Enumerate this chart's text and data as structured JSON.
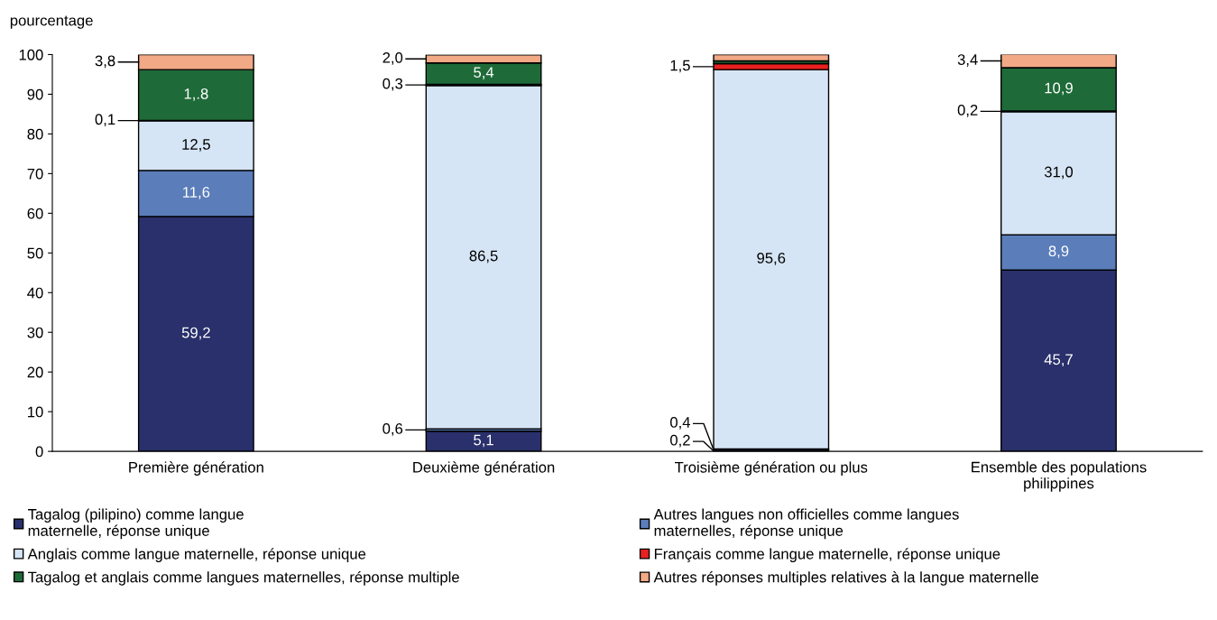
{
  "chart_data": {
    "type": "bar",
    "stacked": true,
    "ylabel": "pourcentage",
    "categories": [
      "Première génération",
      "Deuxième génération",
      "Troisième génération ou plus",
      "Ensemble des populations\nphilippines"
    ],
    "series": [
      {
        "name": "Tagalog (pilipino) comme langue\nmaternelle, réponse unique",
        "color": "#29306b",
        "values": [
          59.2,
          5.1,
          0.2,
          45.7
        ],
        "value_labels": [
          "59,2",
          "5,1",
          "0,2",
          "45,7"
        ]
      },
      {
        "name": "Autres langues non officielles comme langues\nmaternelles, réponse unique",
        "color": "#5b7dba",
        "values": [
          11.6,
          0.6,
          0.4,
          8.9
        ],
        "value_labels": [
          "11,6",
          "0,6",
          "0,4",
          "8,9"
        ]
      },
      {
        "name": "Anglais comme langue maternelle, réponse unique",
        "color": "#d6e5f5",
        "values": [
          12.5,
          86.5,
          95.6,
          31.0
        ],
        "value_labels": [
          "12,5",
          "86,5",
          "95,6",
          "31,0"
        ]
      },
      {
        "name": "Français comme langue maternelle, réponse unique",
        "color": "#e8201f",
        "values": [
          0.1,
          0.3,
          1.5,
          0.2
        ],
        "value_labels": [
          "0,1",
          "0,3",
          "1,5",
          "0,2"
        ]
      },
      {
        "name": "Tagalog et anglais comme langues maternelles, réponse multiple",
        "color": "#1e6b39",
        "values": [
          12.8,
          5.4,
          0.7,
          10.9
        ],
        "value_labels": [
          "1,.8",
          "5,4",
          null,
          "10,9"
        ]
      },
      {
        "name": "Autres réponses multiples relatives à la langue maternelle",
        "color": "#f2a985",
        "values": [
          3.8,
          2.0,
          1.6,
          3.4
        ],
        "value_labels": [
          "3,8",
          "2,0",
          null,
          "3,4"
        ]
      }
    ],
    "ylim": [
      0,
      100
    ],
    "yticks": [
      0,
      10,
      20,
      30,
      40,
      50,
      60,
      70,
      80,
      90,
      100
    ],
    "grid": false,
    "legend": "bottom"
  }
}
